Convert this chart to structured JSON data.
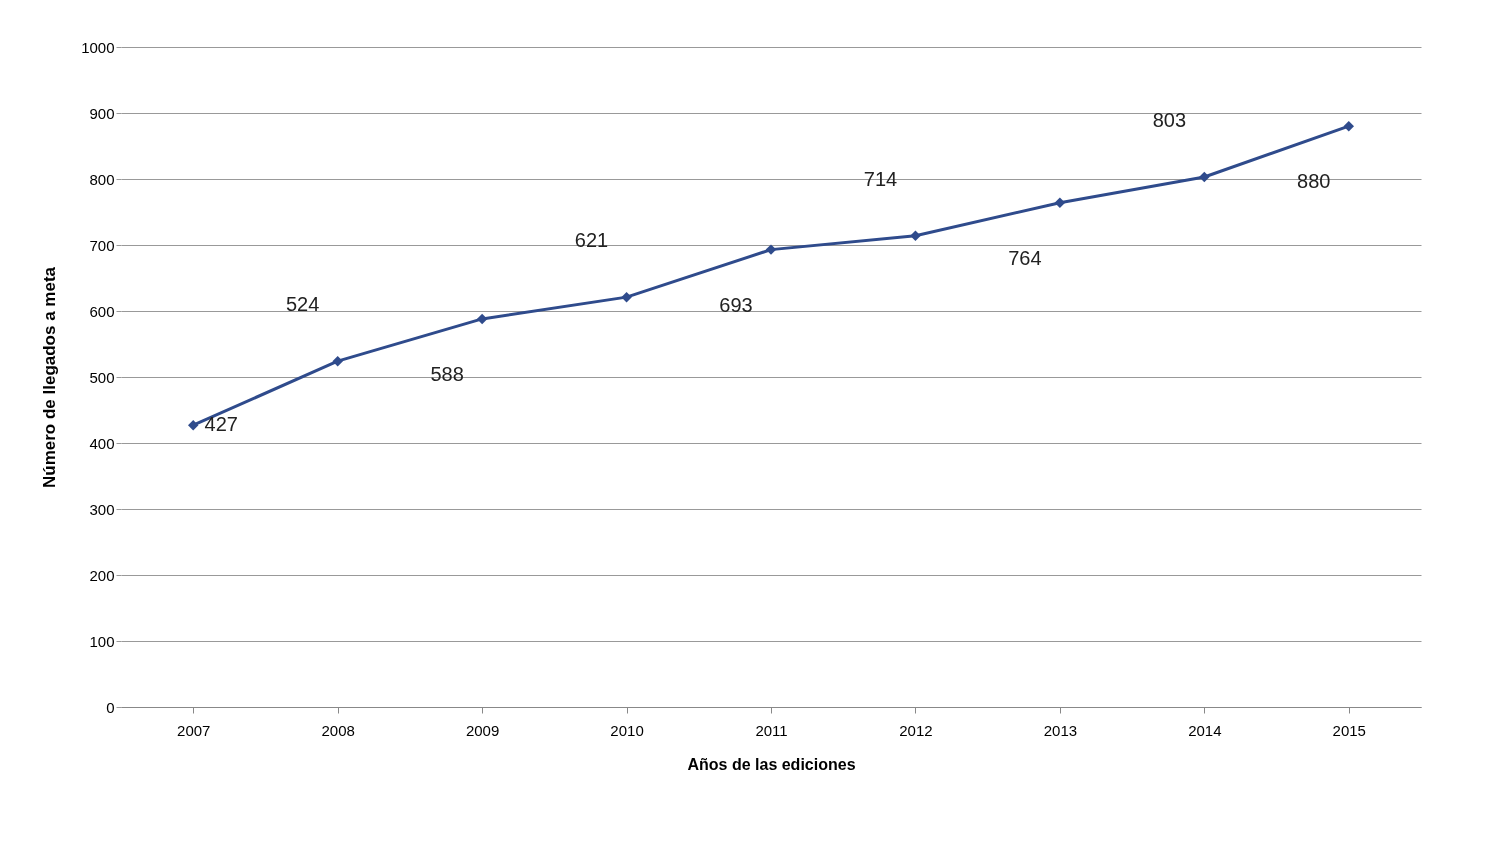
{
  "chart_data": {
    "type": "line",
    "xlabel": "Años de las ediciones",
    "ylabel": "Número de llegados a meta",
    "categories": [
      "2007",
      "2008",
      "2009",
      "2010",
      "2011",
      "2012",
      "2013",
      "2014",
      "2015"
    ],
    "series": [
      {
        "color": "#2f4b8c",
        "values": [
          427,
          524,
          588,
          621,
          693,
          714,
          764,
          803,
          880
        ]
      }
    ],
    "ylim": [
      0,
      1000
    ],
    "yticks": [
      0,
      100,
      200,
      300,
      400,
      500,
      600,
      700,
      800,
      900,
      1000
    ],
    "grid": "y",
    "marker": "diamond",
    "line_style": "solid",
    "data_labels": true
  }
}
